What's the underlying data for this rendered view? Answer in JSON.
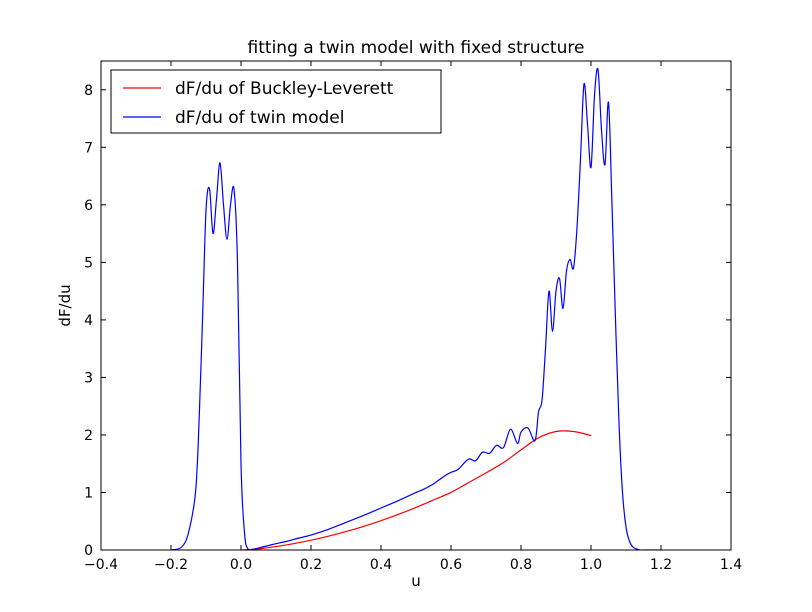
{
  "chart_data": {
    "type": "line",
    "title": "fitting a twin model with fixed structure",
    "xlabel": "u",
    "ylabel": "dF/du",
    "xlim": [
      -0.4,
      1.4
    ],
    "ylim": [
      0,
      8.5
    ],
    "grid": false,
    "legend_position": "top-left",
    "xticks": [
      -0.4,
      -0.2,
      0.0,
      0.2,
      0.4,
      0.6,
      0.8,
      1.0,
      1.2,
      1.4
    ],
    "xtick_labels": [
      "−0.4",
      "−0.2",
      "0.0",
      "0.2",
      "0.4",
      "0.6",
      "0.8",
      "1.0",
      "1.2",
      "1.4"
    ],
    "yticks": [
      0,
      1,
      2,
      3,
      4,
      5,
      6,
      7,
      8
    ],
    "ytick_labels": [
      "0",
      "1",
      "2",
      "3",
      "4",
      "5",
      "6",
      "7",
      "8"
    ],
    "series": [
      {
        "name": "dF/du of Buckley-Leverett",
        "color": "#ff0000",
        "x": [
          0.0,
          0.05,
          0.1,
          0.15,
          0.2,
          0.25,
          0.3,
          0.35,
          0.4,
          0.45,
          0.5,
          0.55,
          0.6,
          0.65,
          0.7,
          0.75,
          0.8,
          0.85,
          0.9,
          0.95,
          1.0
        ],
        "y": [
          0.0,
          0.02,
          0.06,
          0.11,
          0.17,
          0.24,
          0.32,
          0.41,
          0.51,
          0.62,
          0.74,
          0.87,
          1.0,
          1.17,
          1.34,
          1.52,
          1.74,
          1.95,
          2.06,
          2.06,
          1.99
        ]
      },
      {
        "name": "dF/du of twin model",
        "color": "#0000ff",
        "x": [
          -0.2,
          -0.17,
          -0.15,
          -0.13,
          -0.12,
          -0.11,
          -0.1,
          -0.09,
          -0.08,
          -0.07,
          -0.06,
          -0.05,
          -0.04,
          -0.03,
          -0.02,
          -0.01,
          0.0,
          0.01,
          0.02,
          0.04,
          0.06,
          0.08,
          0.1,
          0.13,
          0.16,
          0.2,
          0.25,
          0.3,
          0.35,
          0.4,
          0.45,
          0.5,
          0.52,
          0.55,
          0.58,
          0.6,
          0.62,
          0.65,
          0.67,
          0.69,
          0.71,
          0.73,
          0.75,
          0.77,
          0.79,
          0.8,
          0.82,
          0.84,
          0.85,
          0.86,
          0.87,
          0.88,
          0.89,
          0.9,
          0.91,
          0.92,
          0.93,
          0.94,
          0.95,
          0.96,
          0.97,
          0.98,
          0.99,
          1.0,
          1.01,
          1.02,
          1.03,
          1.04,
          1.05,
          1.06,
          1.07,
          1.08,
          1.09,
          1.1,
          1.11,
          1.12,
          1.13,
          1.14,
          1.15,
          1.16,
          1.18,
          1.2
        ],
        "y": [
          0.0,
          0.05,
          0.3,
          1.0,
          2.2,
          4.0,
          5.9,
          6.28,
          5.5,
          6.1,
          6.73,
          6.0,
          5.4,
          6.0,
          6.27,
          5.0,
          1.5,
          0.3,
          0.02,
          0.02,
          0.05,
          0.08,
          0.11,
          0.15,
          0.2,
          0.26,
          0.36,
          0.48,
          0.6,
          0.73,
          0.86,
          1.0,
          1.05,
          1.15,
          1.28,
          1.35,
          1.4,
          1.58,
          1.55,
          1.7,
          1.68,
          1.82,
          1.78,
          2.1,
          1.85,
          2.05,
          2.12,
          1.9,
          2.4,
          2.6,
          3.5,
          4.5,
          3.8,
          4.5,
          4.72,
          4.2,
          4.85,
          5.05,
          4.9,
          5.6,
          6.8,
          8.1,
          7.4,
          6.65,
          7.9,
          8.35,
          7.3,
          6.7,
          7.78,
          6.0,
          4.0,
          2.2,
          1.0,
          0.4,
          0.15,
          0.05,
          0.02,
          0.0,
          0.0,
          0.0,
          0.0,
          0.0
        ]
      }
    ]
  }
}
